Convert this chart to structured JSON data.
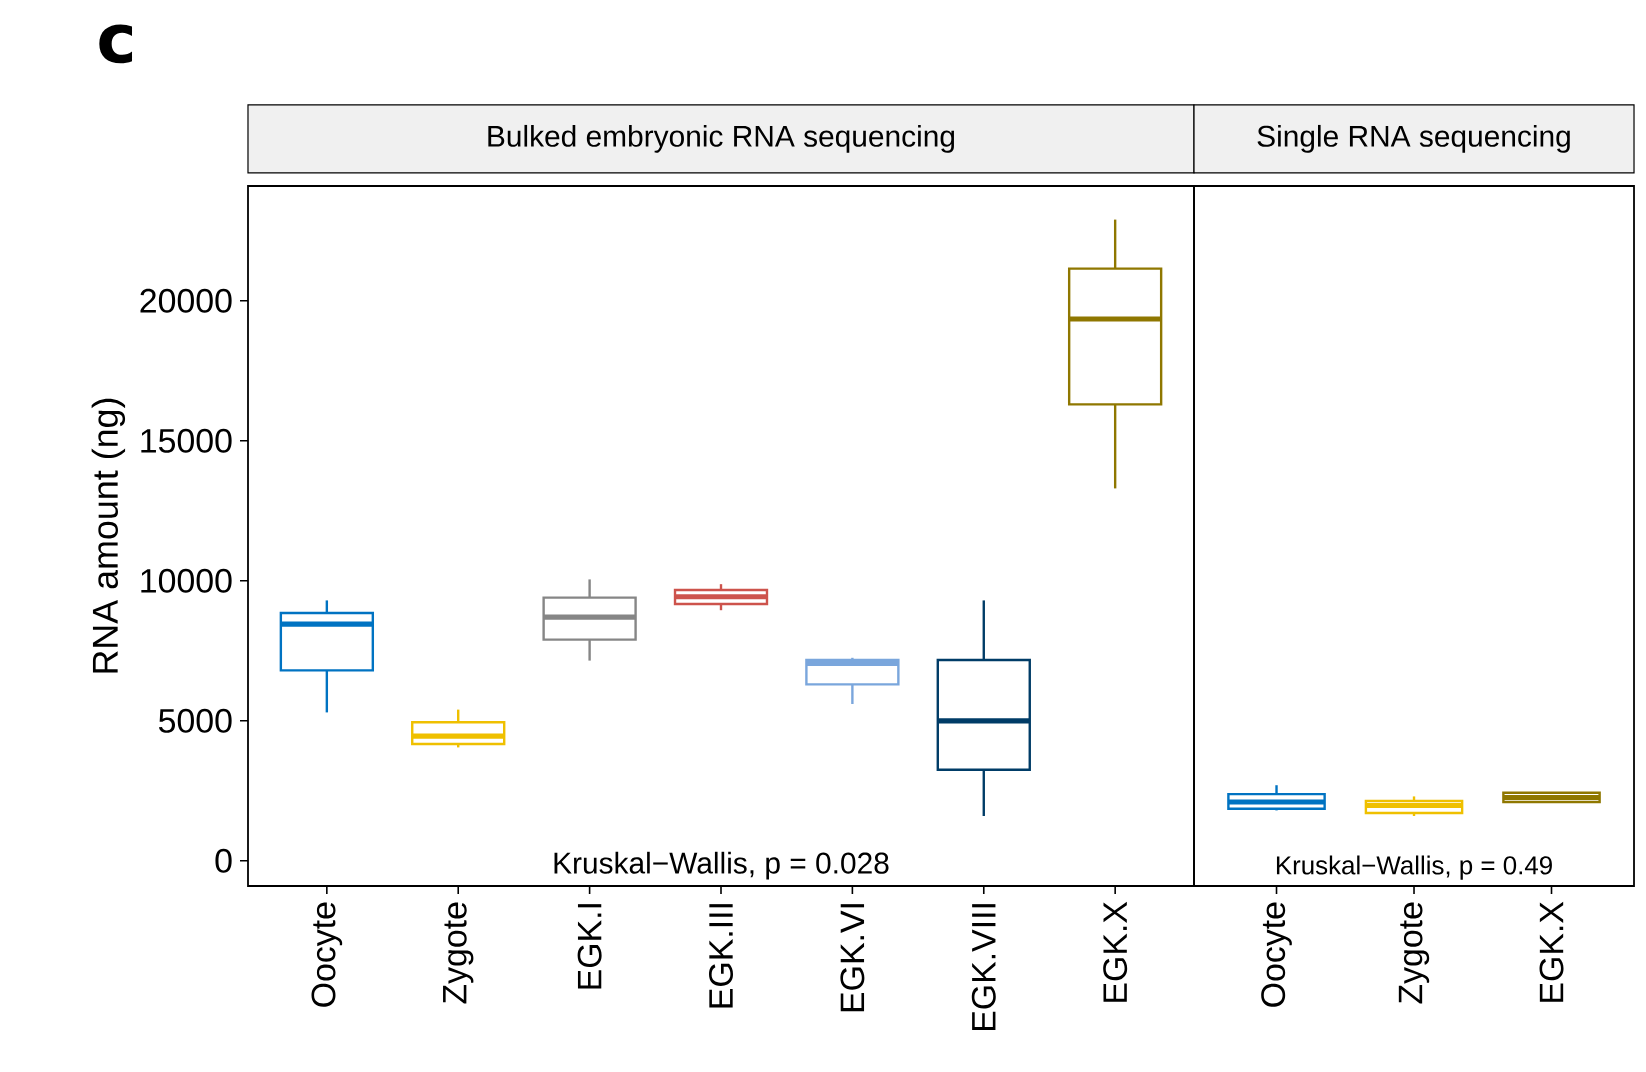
{
  "chart_data": [
    {
      "type": "box",
      "title": "Bulked embryonic RNA sequencing",
      "ylabel": "RNA amount (ng)",
      "categories": [
        "Oocyte",
        "Zygote",
        "EGK.I",
        "EGK.III",
        "EGK.VI",
        "EGK.VIII",
        "EGK.X"
      ],
      "colors": [
        "#0073c2",
        "#efc000",
        "#868686",
        "#cd534c",
        "#7aa6dc",
        "#003c67",
        "#8f7700"
      ],
      "boxes": [
        {
          "low": 5300,
          "q1": 6800,
          "median": 8450,
          "q3": 8850,
          "high": 9300
        },
        {
          "low": 4050,
          "q1": 4170,
          "median": 4450,
          "q3": 4950,
          "high": 5400
        },
        {
          "low": 7150,
          "q1": 7900,
          "median": 8700,
          "q3": 9400,
          "high": 10050
        },
        {
          "low": 8950,
          "q1": 9170,
          "median": 9430,
          "q3": 9670,
          "high": 9880
        },
        {
          "low": 5600,
          "q1": 6300,
          "median": 7050,
          "q3": 7170,
          "high": 7250
        },
        {
          "low": 1600,
          "q1": 3250,
          "median": 5000,
          "q3": 7170,
          "high": 9300
        },
        {
          "low": 13300,
          "q1": 16300,
          "median": 19350,
          "q3": 21150,
          "high": 22900
        }
      ],
      "ylim": [
        -900,
        24100
      ],
      "yticks": [
        0,
        5000,
        10000,
        15000,
        20000
      ],
      "annotations": [
        "c",
        "Kruskal−Wallis, p = 0.028"
      ]
    },
    {
      "type": "box",
      "title": "Single RNA sequencing",
      "categories": [
        "Oocyte",
        "Zygote",
        "EGK.X"
      ],
      "colors": [
        "#0073c2",
        "#efc000",
        "#8f7700"
      ],
      "boxes": [
        {
          "low": 1800,
          "q1": 1860,
          "median": 2100,
          "q3": 2380,
          "high": 2700
        },
        {
          "low": 1600,
          "q1": 1710,
          "median": 1980,
          "q3": 2140,
          "high": 2300
        },
        {
          "low": 2080,
          "q1": 2100,
          "median": 2260,
          "q3": 2430,
          "high": 2450
        }
      ],
      "ylim": [
        -900,
        24100
      ],
      "tick_labels": "x",
      "annotations": [
        "Kruskal−Wallis, p = 0.49"
      ]
    }
  ]
}
